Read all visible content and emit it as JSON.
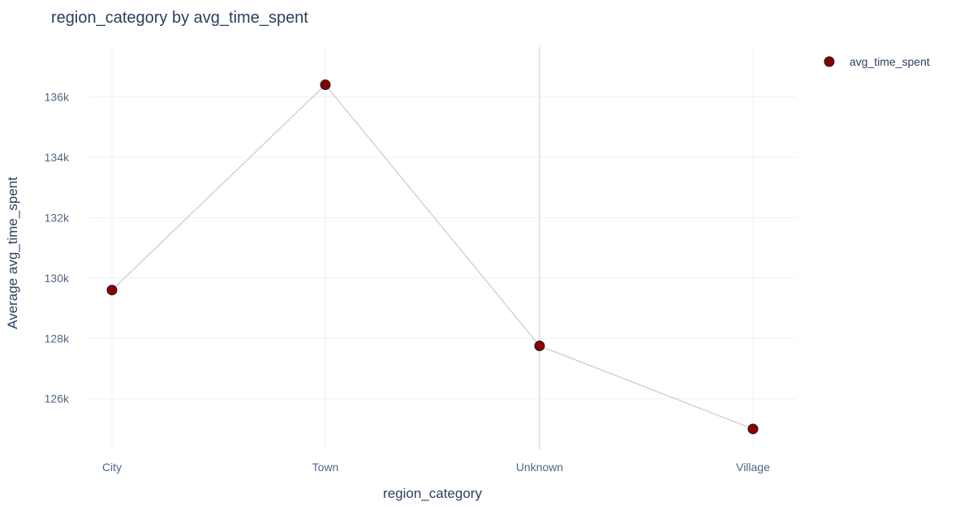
{
  "chart_data": {
    "type": "line",
    "title": "region_category by avg_time_spent",
    "xlabel": "region_category",
    "ylabel": "Average avg_time_spent",
    "categories": [
      "City",
      "Town",
      "Unknown",
      "Village"
    ],
    "series": [
      {
        "name": "avg_time_spent",
        "values": [
          129600,
          136400,
          127750,
          125000
        ],
        "marker_color": "#8b0000",
        "marker_outline": "#1a1a1a",
        "line_color": "#d3d3d3"
      }
    ],
    "y_ticks": [
      126000,
      128000,
      130000,
      132000,
      134000,
      136000
    ],
    "y_tick_labels": [
      "126k",
      "128k",
      "130k",
      "132k",
      "134k",
      "136k"
    ],
    "ylim": [
      124300,
      137650
    ],
    "grid": true,
    "highlighted_category": "Unknown",
    "legend_position": "top-right"
  }
}
